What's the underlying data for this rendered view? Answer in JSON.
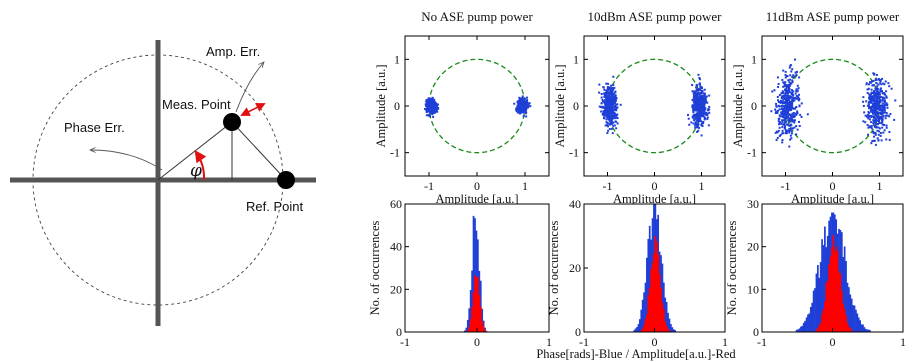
{
  "diagram": {
    "labels": {
      "amp_err": "Amp. Err.",
      "meas_point": "Meas. Point",
      "phase_err": "Phase Err.",
      "phi": "φ",
      "ref_point": "Ref. Point"
    }
  },
  "figure_xlabel": "Phase[rads]-Blue  / Amplitude[a.u.]-Red",
  "chart_data": [
    {
      "type": "scatter",
      "title": "No ASE pump power",
      "xlabel": "Amplitude [a.u.]",
      "ylabel": "Amplitude [a.u.]",
      "xlim": [
        -1.5,
        1.5
      ],
      "ylim": [
        -1.5,
        1.5
      ],
      "xticks": [
        "-1",
        "0",
        "1"
      ],
      "yticks": [
        "1",
        "0",
        "-1"
      ],
      "reference_circle": {
        "radius": 1,
        "color": "#1a8a1a",
        "style": "dashed"
      },
      "clusters": [
        {
          "center": [
            -0.95,
            0.0
          ],
          "spread_x": 0.05,
          "spread_y": 0.07
        },
        {
          "center": [
            0.95,
            0.0
          ],
          "spread_x": 0.05,
          "spread_y": 0.07
        }
      ],
      "point_color": "#1f3fd8"
    },
    {
      "type": "scatter",
      "title": "10dBm ASE pump power",
      "xlabel": "Amplitude [a.u.]",
      "ylabel": "Amplitude [a.u.]",
      "xlim": [
        -1.5,
        1.5
      ],
      "ylim": [
        -1.5,
        1.5
      ],
      "xticks": [
        "-1",
        "0",
        "1"
      ],
      "yticks": [
        "1",
        "0",
        "-1"
      ],
      "reference_circle": {
        "radius": 1,
        "color": "#1a8a1a",
        "style": "dashed"
      },
      "clusters": [
        {
          "center": [
            -0.95,
            0.0
          ],
          "spread_x": 0.08,
          "spread_y": 0.2
        },
        {
          "center": [
            0.95,
            0.0
          ],
          "spread_x": 0.08,
          "spread_y": 0.2
        }
      ],
      "point_color": "#1f3fd8"
    },
    {
      "type": "scatter",
      "title": "11dBm ASE pump power",
      "xlabel": "Amplitude [a.u.]",
      "ylabel": "Amplitude [a.u.]",
      "xlim": [
        -1.5,
        1.5
      ],
      "ylim": [
        -1.5,
        1.5
      ],
      "xticks": [
        "-1",
        "0",
        "1"
      ],
      "yticks": [
        "1",
        "0",
        "-1"
      ],
      "reference_circle": {
        "radius": 1,
        "color": "#1a8a1a",
        "style": "dashed"
      },
      "clusters": [
        {
          "center": [
            -0.95,
            0.0
          ],
          "spread_x": 0.12,
          "spread_y": 0.3
        },
        {
          "center": [
            0.95,
            0.0
          ],
          "spread_x": 0.12,
          "spread_y": 0.3
        }
      ],
      "point_color": "#1f3fd8"
    },
    {
      "type": "bar",
      "xlim": [
        -1,
        1
      ],
      "ylim": [
        0,
        60
      ],
      "xticks": [
        "-1",
        "0",
        "1"
      ],
      "yticks": [
        "60",
        "40",
        "20",
        "0"
      ],
      "ylabel": "No. of occurrences",
      "series": [
        {
          "color": "#1f3fd8",
          "center": -0.02,
          "sigma": 0.05,
          "peak": 60
        },
        {
          "color": "#ff0000",
          "center": -0.01,
          "sigma": 0.045,
          "peak": 32
        }
      ]
    },
    {
      "type": "bar",
      "xlim": [
        -1,
        1
      ],
      "ylim": [
        0,
        40
      ],
      "xticks": [
        "-1",
        "0",
        "1"
      ],
      "yticks": [
        "40",
        "20",
        "0"
      ],
      "ylabel": "No. of occurrences",
      "series": [
        {
          "color": "#1f3fd8",
          "center": 0.0,
          "sigma": 0.1,
          "peak": 40
        },
        {
          "color": "#ff0000",
          "center": 0.01,
          "sigma": 0.07,
          "peak": 30
        }
      ]
    },
    {
      "type": "bar",
      "xlim": [
        -1,
        1
      ],
      "ylim": [
        0,
        30
      ],
      "xticks": [
        "-1",
        "0",
        "1"
      ],
      "yticks": [
        "30",
        "20",
        "10",
        "0"
      ],
      "ylabel": "No. of occurrences",
      "series": [
        {
          "color": "#1f3fd8",
          "center": 0.0,
          "sigma": 0.18,
          "peak": 28
        },
        {
          "color": "#ff0000",
          "center": 0.02,
          "sigma": 0.09,
          "peak": 24
        }
      ]
    }
  ]
}
